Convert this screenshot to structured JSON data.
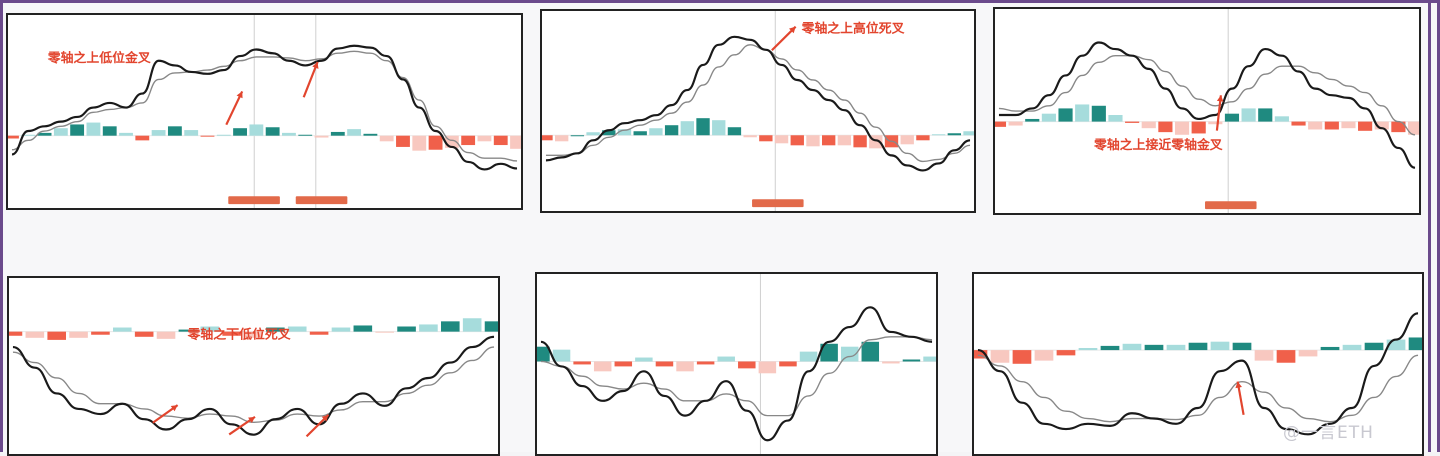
{
  "watermark": "@一言ETH",
  "colors": {
    "pos_dark": "#1f8a80",
    "pos_light": "#a6dcdc",
    "neg_dark": "#f0604a",
    "neg_light": "#f8c8c0",
    "dif": "#1a1a1a",
    "dea": "#888888",
    "label": "#e2452e",
    "tag_bg": "#e26a4a"
  },
  "chart_data": [
    {
      "type": "line",
      "title": "零轴之上低位金叉",
      "annotations": [
        {
          "text": "零轴之上低位金叉"
        }
      ],
      "dif": [
        -0.2,
        0.05,
        0.1,
        0.15,
        0.2,
        0.3,
        0.35,
        0.3,
        0.45,
        0.8,
        0.75,
        0.68,
        0.66,
        0.7,
        0.85,
        0.92,
        0.88,
        0.8,
        0.75,
        0.8,
        0.93,
        0.96,
        0.94,
        0.85,
        0.6,
        0.3,
        0.05,
        -0.12,
        -0.28,
        -0.36,
        -0.3,
        -0.35
      ],
      "dea": [
        -0.15,
        -0.05,
        0.05,
        0.1,
        0.15,
        0.25,
        0.28,
        0.3,
        0.35,
        0.6,
        0.67,
        0.68,
        0.7,
        0.74,
        0.8,
        0.84,
        0.84,
        0.83,
        0.8,
        0.82,
        0.88,
        0.9,
        0.88,
        0.8,
        0.62,
        0.38,
        0.1,
        -0.05,
        -0.18,
        -0.24,
        -0.24,
        -0.27
      ],
      "hist": [
        -0.03,
        0.01,
        0.03,
        0.08,
        0.12,
        0.14,
        0.1,
        0.03,
        -0.05,
        0.06,
        0.1,
        0.06,
        -0.01,
        0.01,
        0.08,
        0.12,
        0.09,
        0.03,
        0.01,
        -0.02,
        0.04,
        0.07,
        0.02,
        -0.06,
        -0.12,
        -0.16,
        -0.15,
        -0.13,
        -0.1,
        -0.06,
        -0.1,
        -0.14
      ],
      "ylim": [
        -0.5,
        1.1
      ],
      "zero": 0
    },
    {
      "type": "line",
      "title": "零轴之上高位死叉",
      "annotations": [
        {
          "text": "零轴之上高位死叉"
        }
      ],
      "dif": [
        -0.25,
        -0.22,
        -0.18,
        -0.05,
        0.05,
        0.12,
        0.15,
        0.2,
        0.3,
        0.45,
        0.7,
        0.9,
        0.98,
        0.95,
        0.85,
        0.7,
        0.55,
        0.45,
        0.35,
        0.25,
        0.1,
        -0.05,
        -0.2,
        -0.3,
        -0.35,
        -0.28,
        -0.15,
        -0.05
      ],
      "dea": [
        -0.2,
        -0.2,
        -0.18,
        -0.1,
        -0.02,
        0.05,
        0.1,
        0.15,
        0.22,
        0.33,
        0.5,
        0.68,
        0.8,
        0.9,
        0.85,
        0.76,
        0.65,
        0.55,
        0.45,
        0.35,
        0.22,
        0.08,
        -0.06,
        -0.18,
        -0.26,
        -0.24,
        -0.18,
        -0.1
      ],
      "hist": [
        -0.05,
        -0.06,
        0,
        0.03,
        0.05,
        0.06,
        0.04,
        0.07,
        0.1,
        0.14,
        0.17,
        0.15,
        0.08,
        -0.02,
        -0.06,
        -0.08,
        -0.1,
        -0.11,
        -0.1,
        -0.1,
        -0.12,
        -0.13,
        -0.12,
        -0.09,
        -0.05,
        0.01,
        0.02,
        0.04
      ],
      "ylim": [
        -0.5,
        1.1
      ],
      "zero": 0
    },
    {
      "type": "line",
      "title": "零轴之上接近零轴金叉",
      "annotations": [
        {
          "text": "零轴之上接近零轴金叉"
        }
      ],
      "dif": [
        0.05,
        0.05,
        0.1,
        0.2,
        0.35,
        0.5,
        0.6,
        0.55,
        0.5,
        0.4,
        0.25,
        0.1,
        0.02,
        0.05,
        0.25,
        0.42,
        0.55,
        0.5,
        0.38,
        0.25,
        0.2,
        0.18,
        0.1,
        -0.05,
        -0.2,
        -0.35
      ],
      "dea": [
        0.1,
        0.08,
        0.08,
        0.12,
        0.22,
        0.35,
        0.45,
        0.5,
        0.5,
        0.47,
        0.38,
        0.27,
        0.17,
        0.12,
        0.15,
        0.25,
        0.36,
        0.42,
        0.42,
        0.37,
        0.32,
        0.27,
        0.22,
        0.12,
        0.0,
        -0.1
      ],
      "hist": [
        -0.04,
        -0.03,
        0.02,
        0.06,
        0.1,
        0.13,
        0.12,
        0.05,
        -0.01,
        -0.05,
        -0.08,
        -0.1,
        -0.09,
        -0.02,
        0.06,
        0.1,
        0.1,
        0.04,
        -0.03,
        -0.06,
        -0.06,
        -0.05,
        -0.07,
        -0.06,
        -0.08,
        -0.1
      ],
      "ylim": [
        -0.5,
        0.75
      ],
      "zero": 0
    },
    {
      "type": "line",
      "title": "零轴之下低位死叉",
      "annotations": [
        {
          "text": "零轴之下低位死叉"
        }
      ],
      "dif": [
        -0.15,
        -0.35,
        -0.6,
        -0.75,
        -0.8,
        -0.7,
        -0.85,
        -0.95,
        -0.85,
        -0.75,
        -0.9,
        -1.0,
        -0.85,
        -0.75,
        -0.9,
        -0.7,
        -0.6,
        -0.72,
        -0.55,
        -0.45,
        -0.3,
        -0.15,
        -0.05
      ],
      "dea": [
        -0.2,
        -0.3,
        -0.45,
        -0.6,
        -0.7,
        -0.7,
        -0.75,
        -0.82,
        -0.84,
        -0.8,
        -0.82,
        -0.88,
        -0.86,
        -0.8,
        -0.82,
        -0.76,
        -0.68,
        -0.68,
        -0.6,
        -0.52,
        -0.4,
        -0.28,
        -0.15
      ],
      "hist": [
        -0.04,
        -0.06,
        -0.08,
        -0.06,
        -0.03,
        0.04,
        -0.05,
        -0.07,
        0.02,
        0.05,
        -0.04,
        -0.06,
        0.04,
        0.05,
        -0.03,
        0.04,
        0.06,
        -0.01,
        0.05,
        0.07,
        0.1,
        0.13,
        0.1
      ],
      "ylim": [
        -1.15,
        0.35
      ],
      "zero": 0
    },
    {
      "type": "line",
      "title": "",
      "annotations": [],
      "dif": [
        0.2,
        -0.05,
        -0.25,
        -0.4,
        -0.3,
        -0.1,
        -0.35,
        -0.55,
        -0.4,
        -0.2,
        -0.5,
        -0.8,
        -0.6,
        -0.1,
        0.2,
        0.35,
        0.55,
        0.3,
        0.25,
        0.2
      ],
      "dea": [
        0.0,
        -0.05,
        -0.15,
        -0.25,
        -0.28,
        -0.22,
        -0.28,
        -0.4,
        -0.4,
        -0.33,
        -0.4,
        -0.55,
        -0.55,
        -0.35,
        -0.12,
        0.05,
        0.22,
        0.25,
        0.25,
        0.22
      ],
      "hist": [
        0.15,
        0.12,
        -0.03,
        -0.1,
        -0.05,
        0.04,
        -0.05,
        -0.1,
        -0.03,
        0.05,
        -0.07,
        -0.12,
        -0.05,
        0.1,
        0.18,
        0.15,
        0.2,
        -0.02,
        0.02,
        0.05
      ],
      "ylim": [
        -0.9,
        0.65
      ],
      "zero": 0
    },
    {
      "type": "line",
      "title": "",
      "annotations": [],
      "dif": [
        0.0,
        -0.2,
        -0.5,
        -0.7,
        -0.75,
        -0.7,
        -0.72,
        -0.6,
        -0.65,
        -0.7,
        -0.55,
        -0.2,
        -0.1,
        -0.55,
        -0.75,
        -0.8,
        -0.7,
        -0.55,
        -0.15,
        0.1,
        0.35
      ],
      "dea": [
        -0.05,
        -0.15,
        -0.3,
        -0.45,
        -0.58,
        -0.65,
        -0.68,
        -0.65,
        -0.65,
        -0.66,
        -0.62,
        -0.45,
        -0.3,
        -0.4,
        -0.55,
        -0.65,
        -0.68,
        -0.62,
        -0.45,
        -0.25,
        -0.05
      ],
      "hist": [
        -0.08,
        -0.12,
        -0.13,
        -0.1,
        -0.05,
        0.02,
        0.04,
        0.06,
        0.05,
        0.05,
        0.07,
        0.08,
        0.07,
        -0.1,
        -0.12,
        -0.06,
        0.03,
        0.05,
        0.07,
        0.1,
        0.12
      ],
      "ylim": [
        -0.95,
        0.5
      ],
      "zero": 0
    }
  ]
}
